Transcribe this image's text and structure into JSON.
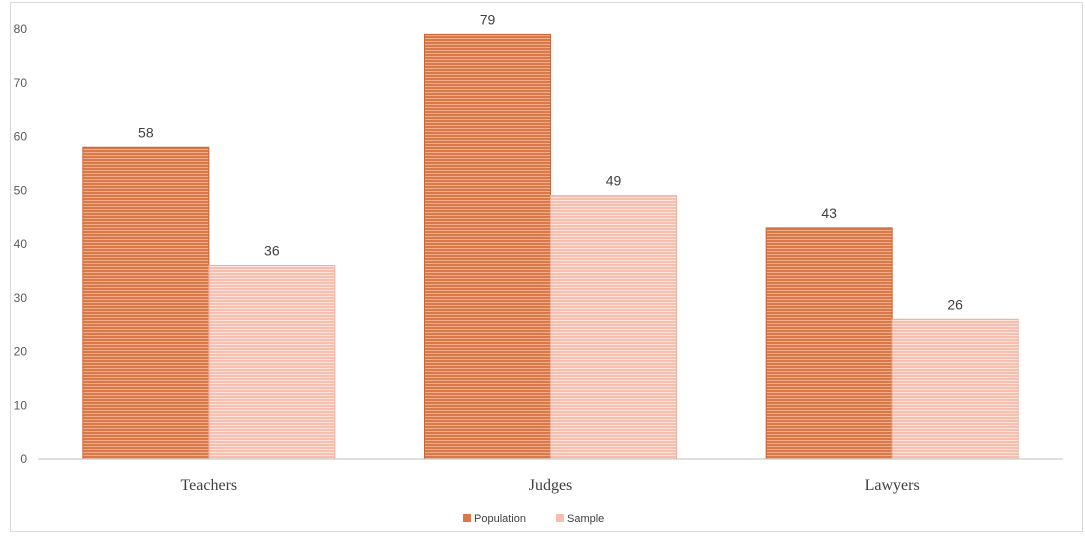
{
  "chart_data": {
    "type": "bar",
    "categories": [
      "Teachers",
      "Judges",
      "Lawyers"
    ],
    "series": [
      {
        "name": "Population",
        "values": [
          58,
          79,
          43
        ],
        "color": "#d9794a"
      },
      {
        "name": "Sample",
        "values": [
          36,
          49,
          26
        ],
        "color": "#f6bfb0"
      }
    ],
    "ylim": [
      0,
      80
    ],
    "yticks": [
      0,
      10,
      20,
      30,
      40,
      50,
      60,
      70,
      80
    ],
    "data_labels": true,
    "grid": false,
    "legend_position": "bottom",
    "title": "",
    "xlabel": "",
    "ylabel": ""
  }
}
